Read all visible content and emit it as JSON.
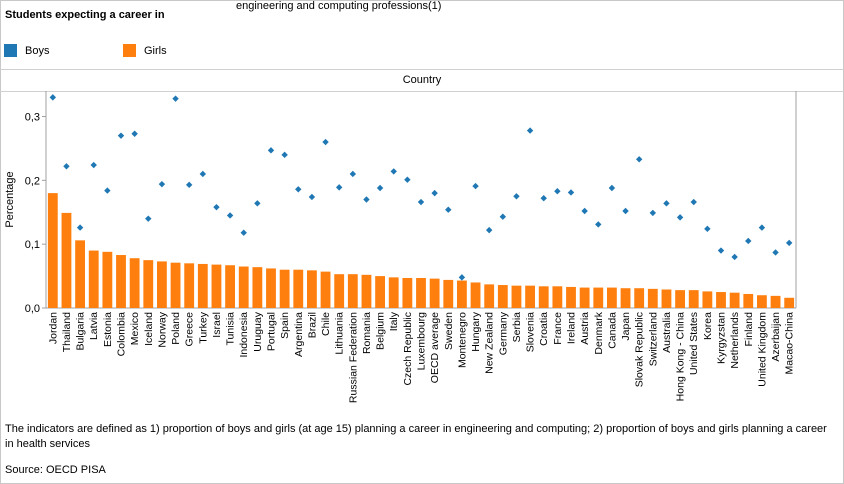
{
  "header": {
    "title": "Students expecting a career in",
    "filter_value": "engineering and computing professions(1)"
  },
  "legend": [
    {
      "label": "Boys",
      "color": "#1f77b4"
    },
    {
      "label": "Girls",
      "color": "#ff7f0e"
    }
  ],
  "column_header": "Country",
  "footer": {
    "definition": "The indicators are defined as 1) proportion of boys and girls (at age 15) planning a career in engineering and computing; 2) proportion of boys and girls planning a career in health services",
    "source": "Source: OECD PISA"
  },
  "chart_data": {
    "type": "bar",
    "ylabel": "Percentage",
    "xlabel": "",
    "ylim": [
      0,
      0.34
    ],
    "yticks": [
      0.0,
      0.1,
      0.2,
      0.3
    ],
    "ytick_labels": [
      "0,0",
      "0,1",
      "0,2",
      "0,3"
    ],
    "grid": false,
    "legend_position": "top-left",
    "colors": {
      "boys": "#1f77b4",
      "girls": "#ff7f0e"
    },
    "categories": [
      "Jordan",
      "Thailand",
      "Bulgaria",
      "Latvia",
      "Estonia",
      "Colombia",
      "Mexico",
      "Iceland",
      "Norway",
      "Poland",
      "Greece",
      "Turkey",
      "Israel",
      "Tunisia",
      "Indonesia",
      "Uruguay",
      "Portugal",
      "Spain",
      "Argentina",
      "Brazil",
      "Chile",
      "Lithuania",
      "Russian Federation",
      "Romania",
      "Belgium",
      "Italy",
      "Czech Republic",
      "Luxembourg",
      "OECD average",
      "Sweden",
      "Montenegro",
      "Hungary",
      "New Zealand",
      "Germany",
      "Serbia",
      "Slovenia",
      "Croatia",
      "France",
      "Ireland",
      "Austria",
      "Denmark",
      "Canada",
      "Japan",
      "Slovak Republic",
      "Switzerland",
      "Australia",
      "Hong Kong - China",
      "United States",
      "Korea",
      "Kyrgyzstan",
      "Netherlands",
      "Finland",
      "United Kingdom",
      "Azerbaijan",
      "Macao-China"
    ],
    "series": [
      {
        "name": "Girls",
        "style": "bar",
        "values": [
          0.18,
          0.149,
          0.106,
          0.09,
          0.088,
          0.083,
          0.078,
          0.075,
          0.073,
          0.071,
          0.07,
          0.069,
          0.068,
          0.067,
          0.065,
          0.064,
          0.062,
          0.06,
          0.06,
          0.059,
          0.057,
          0.053,
          0.053,
          0.052,
          0.05,
          0.048,
          0.047,
          0.047,
          0.046,
          0.044,
          0.043,
          0.04,
          0.037,
          0.036,
          0.035,
          0.035,
          0.034,
          0.034,
          0.033,
          0.032,
          0.032,
          0.032,
          0.031,
          0.031,
          0.03,
          0.029,
          0.028,
          0.028,
          0.026,
          0.025,
          0.024,
          0.022,
          0.02,
          0.019,
          0.016
        ]
      },
      {
        "name": "Boys",
        "style": "point",
        "values": [
          0.33,
          0.222,
          0.126,
          0.224,
          0.184,
          0.27,
          0.273,
          0.14,
          0.194,
          0.328,
          0.193,
          0.21,
          0.158,
          0.145,
          0.118,
          0.164,
          0.247,
          0.24,
          0.186,
          0.174,
          0.26,
          0.189,
          0.21,
          0.17,
          0.188,
          0.214,
          0.201,
          0.166,
          0.18,
          0.154,
          0.048,
          0.191,
          0.122,
          0.143,
          0.175,
          0.278,
          0.172,
          0.183,
          0.181,
          0.152,
          0.131,
          0.188,
          0.152,
          0.233,
          0.149,
          0.164,
          0.142,
          0.166,
          0.124,
          0.09,
          0.08,
          0.105,
          0.126,
          0.087,
          0.102
        ]
      }
    ]
  }
}
